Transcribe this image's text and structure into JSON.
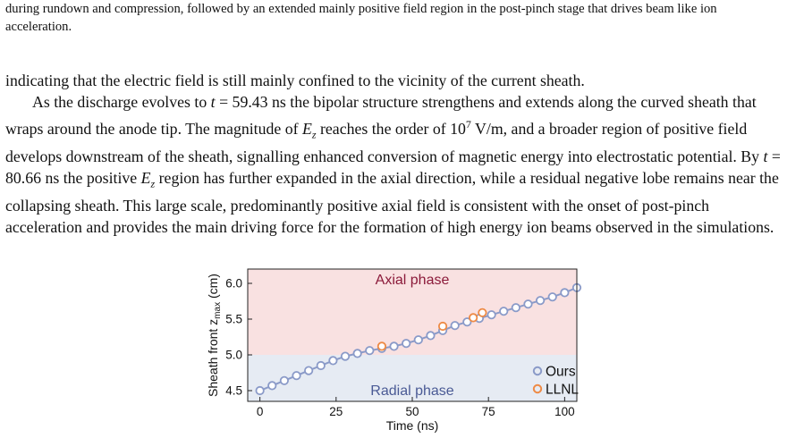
{
  "caption": {
    "text": "during rundown and compression, followed by an extended mainly positive field region in the post-pinch stage that drives beam like ion acceleration."
  },
  "paragraphs": {
    "p1": "indicating that the electric field is still mainly confined to the vicinity of the current sheath.",
    "p2_part1": "As the discharge evolves to ",
    "t1": "59.43",
    "p2_part2": " ns the bipolar structure strengthens and extends along the curved sheath that wraps around the anode tip. The magnitude of ",
    "p2_part3": " reaches the order of ",
    "magnitude_exp": "7",
    "magnitude_unit": "V/m",
    "p2_part4": ", and a broader region of positive field develops downstream of the sheath, signalling enhanced conversion of magnetic energy into electrostatic potential. By ",
    "t2": "80.66",
    "p2_part5": " ns the positive ",
    "p2_part6": " region has further expanded in the axial direction, while a residual negative lobe remains near the collapsing sheath. This large scale, predominantly positive axial field is consistent with the onset of post-pinch acceleration and provides the main driving force for the formation of high energy ion beams observed in the simulations."
  },
  "chart_data": {
    "type": "scatter",
    "xlabel": "Time (ns)",
    "ylabel_prefix": "Sheath front z",
    "ylabel_sub": "max",
    "ylabel_suffix": " (cm)",
    "xlim": [
      -4,
      104
    ],
    "ylim": [
      4.35,
      6.2
    ],
    "xticks": [
      0,
      25,
      50,
      75,
      100
    ],
    "yticks": [
      4.5,
      5.0,
      5.5,
      6.0
    ],
    "ytick_labels": [
      "4.5",
      "5.0",
      "5.5",
      "6.0"
    ],
    "region_boundary_y": 5.0,
    "regions": [
      {
        "label": "Axial phase",
        "color": "#f9e1e1",
        "label_color": "#8b1a3a"
      },
      {
        "label": "Radial phase",
        "color": "#e6ebf3",
        "label_color": "#4a5a95"
      }
    ],
    "series": [
      {
        "name": "Ours",
        "color": "#8a9ac8",
        "x": [
          0,
          4,
          8,
          12,
          16,
          20,
          24,
          28,
          32,
          36,
          40,
          44,
          48,
          52,
          56,
          60,
          64,
          68,
          72,
          76,
          80,
          84,
          88,
          92,
          96,
          100,
          104
        ],
        "y": [
          4.5,
          4.57,
          4.64,
          4.71,
          4.78,
          4.85,
          4.92,
          4.98,
          5.02,
          5.06,
          5.09,
          5.12,
          5.16,
          5.21,
          5.27,
          5.34,
          5.41,
          5.46,
          5.51,
          5.56,
          5.61,
          5.66,
          5.71,
          5.76,
          5.81,
          5.87,
          5.94
        ]
      },
      {
        "name": "LLNL",
        "color": "#ee8a45",
        "x": [
          40,
          60,
          70,
          73
        ],
        "y": [
          5.12,
          5.4,
          5.52,
          5.59
        ]
      }
    ]
  }
}
